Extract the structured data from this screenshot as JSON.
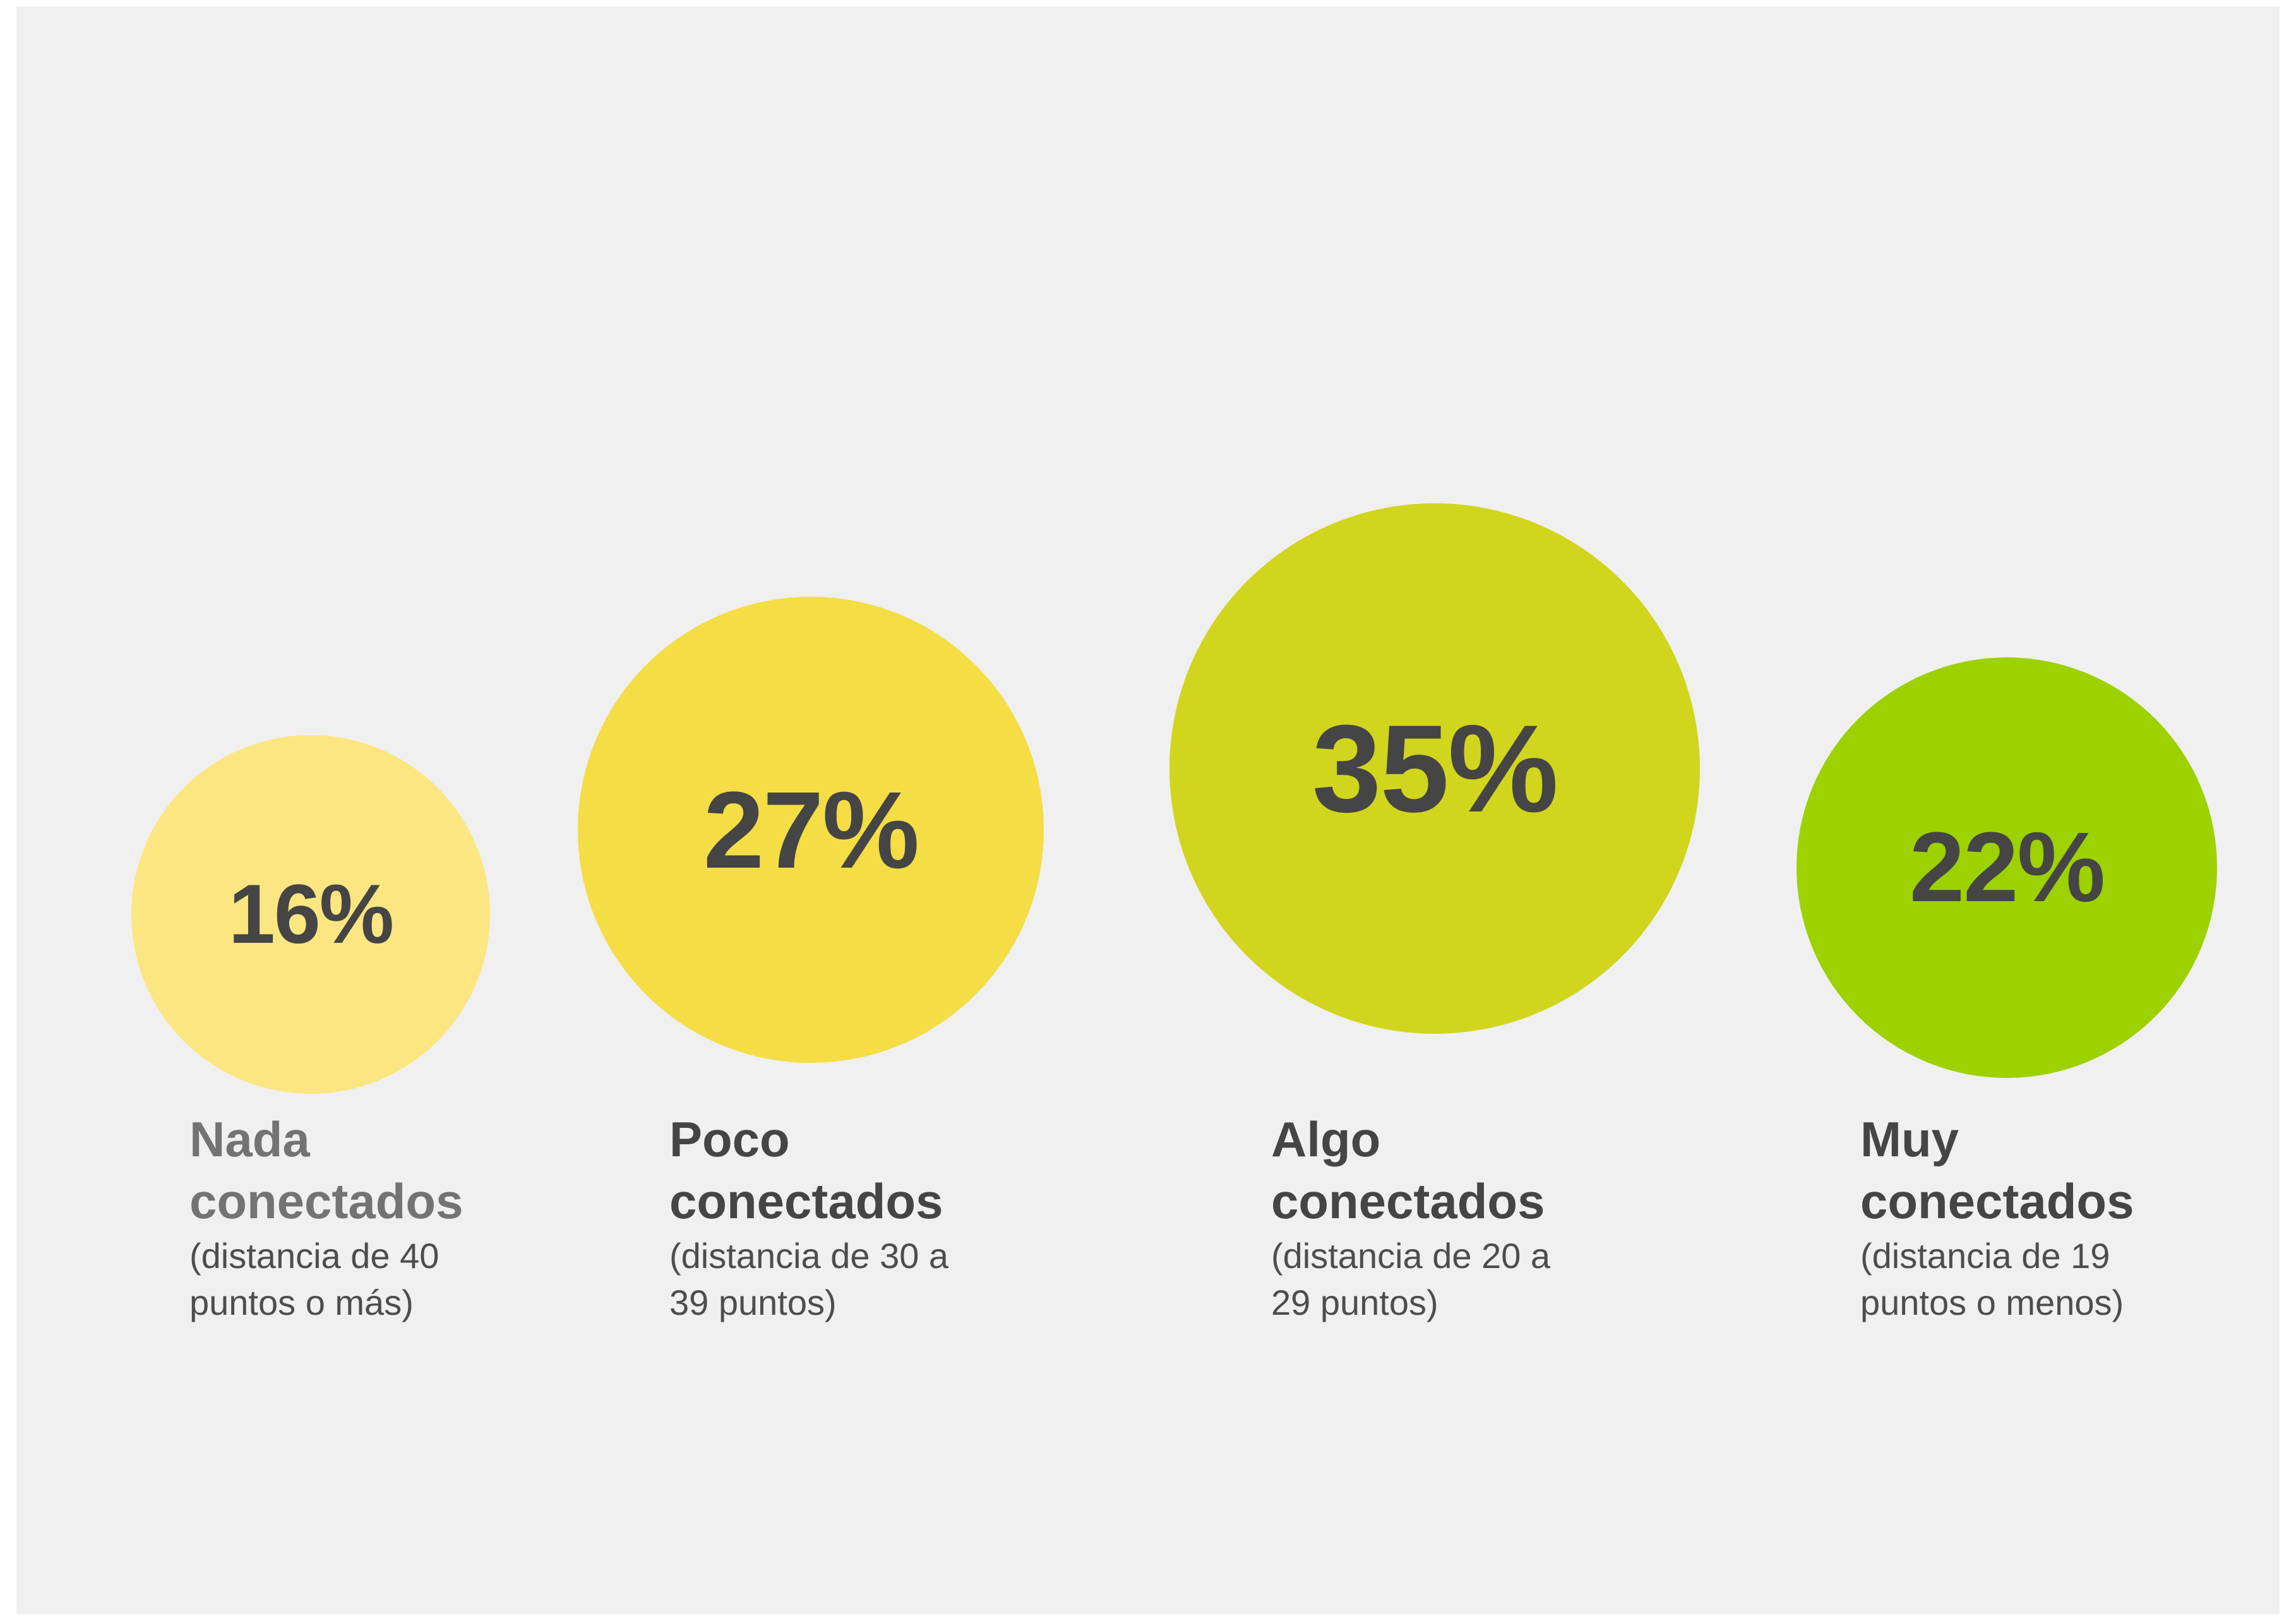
{
  "chart_data": {
    "type": "bubble",
    "unit": "%",
    "items": [
      {
        "value": 16,
        "label": "16%",
        "title_line1": "Nada",
        "title_line2": "conectados",
        "desc_line1": "(distancia de 40",
        "desc_line2": "puntos o más)",
        "color": "#fce681",
        "title_color": "#737373"
      },
      {
        "value": 27,
        "label": "27%",
        "title_line1": "Poco",
        "title_line2": "conectados",
        "desc_line1": "(distancia de 30 a",
        "desc_line2": "39 puntos)",
        "color": "#f4dd45",
        "title_color": "#454545"
      },
      {
        "value": 35,
        "label": "35%",
        "title_line1": "Algo",
        "title_line2": "conectados",
        "desc_line1": "(distancia de 20 a",
        "desc_line2": "29 puntos)",
        "color": "#d1d51d",
        "title_color": "#454545"
      },
      {
        "value": 22,
        "label": "22%",
        "title_line1": "Muy",
        "title_line2": "conectados",
        "desc_line1": "(distancia de 19",
        "desc_line2": "puntos o menos)",
        "color": "#9dd100",
        "title_color": "#454545"
      }
    ]
  }
}
